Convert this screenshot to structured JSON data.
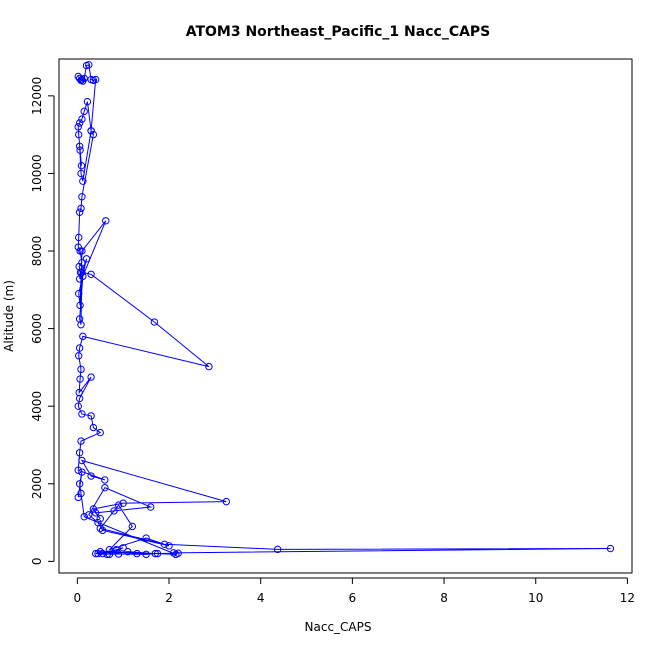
{
  "chart_data": {
    "type": "line",
    "title": "ATOM3 Northeast_Pacific_1 Nacc_CAPS",
    "xlabel": "Nacc_CAPS",
    "ylabel": "Altitude (m)",
    "xlim": [
      -0.4,
      12.1
    ],
    "ylim": [
      -300,
      12950
    ],
    "xticks": [
      0,
      2,
      4,
      6,
      8,
      10,
      12
    ],
    "yticks": [
      0,
      2000,
      4000,
      6000,
      8000,
      10000,
      12000
    ],
    "grid": false,
    "legend": "none",
    "series": [
      {
        "color": "#0000ff",
        "marker": "open-circle",
        "x": [
          0.02,
          0.05,
          0.08,
          0.1,
          0.12,
          0.15,
          0.2,
          0.25,
          0.3,
          0.35,
          0.4,
          0.3,
          0.22,
          0.15,
          0.1,
          0.05,
          0.02,
          0.03,
          0.06,
          0.09,
          0.05,
          0.08,
          0.12,
          0.3,
          0.35,
          0.1,
          0.08,
          0.05,
          0.03,
          0.02,
          0.06,
          0.1,
          0.04,
          0.07,
          0.05,
          0.2,
          0.03,
          0.06,
          0.1,
          0.62,
          0.12,
          0.05,
          0.08,
          0.1,
          0.3,
          1.68,
          2.87,
          0.12,
          0.05,
          0.03,
          0.08,
          0.06,
          0.04,
          0.3,
          0.05,
          0.02,
          0.1,
          0.3,
          0.35,
          0.5,
          0.08,
          0.05,
          0.02,
          0.6,
          0.3,
          0.1,
          3.25,
          1.0,
          0.35,
          0.5,
          0.4,
          0.8,
          1.6,
          0.6,
          0.25,
          0.45,
          0.55,
          2.0,
          1.5,
          0.7,
          1.2,
          0.9,
          0.5,
          1.9,
          4.37,
          11.63,
          2.1,
          2.2,
          1.3,
          0.9,
          0.7,
          1.1,
          1.7,
          1.5,
          0.45,
          0.85,
          0.55,
          1.0,
          0.65,
          0.4,
          0.5,
          1.75,
          2.15,
          0.15,
          0.08,
          0.05,
          0.1,
          0.02
        ],
        "y": [
          12500,
          12450,
          12400,
          12420,
          12380,
          12450,
          12780,
          12800,
          12420,
          12400,
          12420,
          11100,
          11850,
          11600,
          11400,
          11300,
          11200,
          11000,
          10600,
          10200,
          10700,
          10000,
          9800,
          11100,
          11000,
          9400,
          9100,
          9000,
          8350,
          8100,
          8000,
          7700,
          7600,
          7450,
          7280,
          7800,
          6900,
          6600,
          8000,
          8780,
          7350,
          6250,
          6100,
          7450,
          7400,
          6170,
          5020,
          5800,
          5500,
          5300,
          4950,
          4700,
          4350,
          4750,
          4200,
          4000,
          3800,
          3750,
          3450,
          3320,
          3100,
          2800,
          2350,
          2100,
          2200,
          2600,
          1540,
          1500,
          1350,
          1100,
          1250,
          1300,
          1400,
          1900,
          1200,
          1000,
          800,
          400,
          600,
          300,
          900,
          1450,
          850,
          440,
          310,
          330,
          220,
          210,
          200,
          190,
          180,
          250,
          200,
          180,
          200,
          300,
          200,
          350,
          180,
          200,
          250,
          200,
          180,
          1150,
          1750,
          2000,
          2300,
          1650
        ]
      }
    ]
  }
}
